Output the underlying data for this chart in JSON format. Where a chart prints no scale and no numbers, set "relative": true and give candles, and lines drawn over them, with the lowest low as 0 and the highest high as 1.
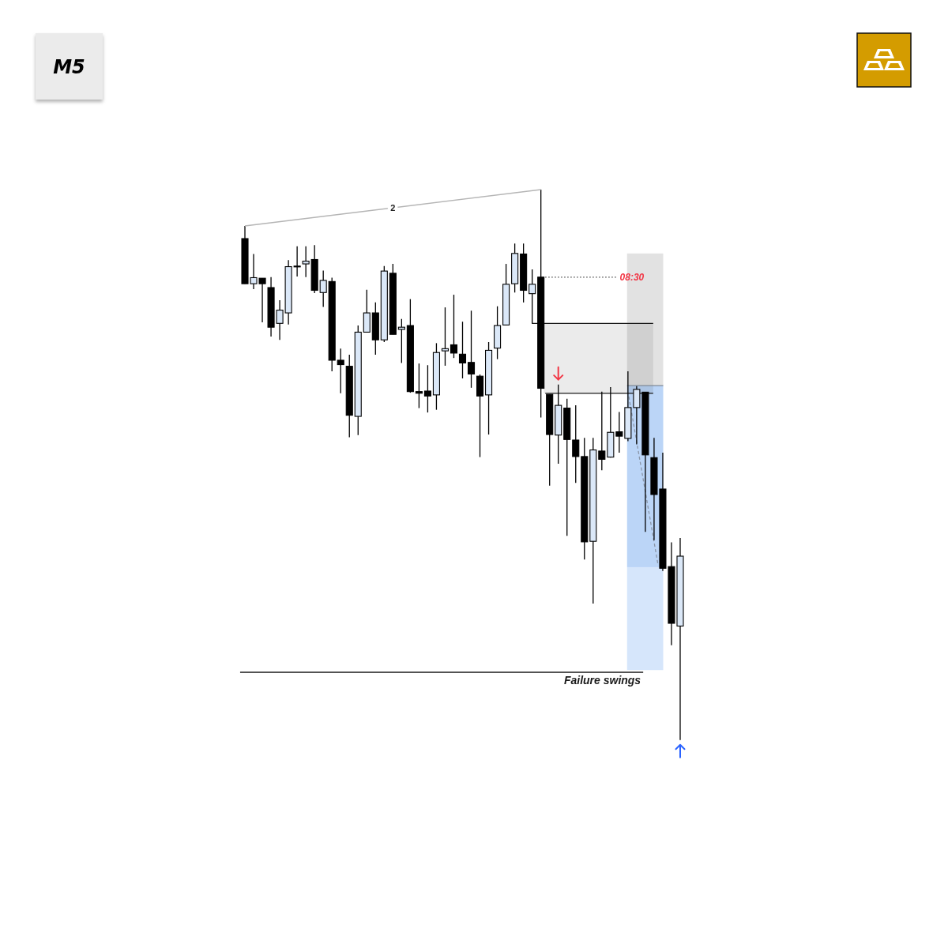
{
  "chart_data": {
    "type": "candlestick",
    "relative": true,
    "categories": [
      null,
      null,
      null,
      null,
      null,
      null,
      null,
      null,
      null,
      null,
      null,
      null,
      null,
      null,
      null,
      null,
      null,
      null,
      null,
      null,
      null,
      null,
      null,
      null,
      null,
      null,
      null,
      null,
      null,
      null,
      null,
      null,
      null,
      null,
      null,
      null,
      null,
      null,
      null,
      null,
      null,
      null,
      null,
      null,
      null,
      null,
      null,
      null,
      null,
      null,
      null
    ],
    "series": [
      {
        "ohlc": [
          [
            0.911,
            0.934,
            0.829,
            0.829
          ],
          [
            0.829,
            0.883,
            0.819,
            0.84
          ],
          [
            0.839,
            0.839,
            0.759,
            0.829
          ],
          [
            0.822,
            0.841,
            0.733,
            0.75
          ],
          [
            0.757,
            0.799,
            0.727,
            0.781
          ],
          [
            0.776,
            0.872,
            0.755,
            0.86
          ],
          [
            0.861,
            0.897,
            0.842,
            0.861
          ],
          [
            0.865,
            0.897,
            0.841,
            0.87
          ],
          [
            0.873,
            0.899,
            0.812,
            0.817
          ],
          [
            0.813,
            0.853,
            0.787,
            0.835
          ],
          [
            0.833,
            0.84,
            0.67,
            0.69
          ],
          [
            0.69,
            0.711,
            0.63,
            0.682
          ],
          [
            0.679,
            0.7,
            0.55,
            0.59
          ],
          [
            0.588,
            0.753,
            0.554,
            0.741
          ],
          [
            0.741,
            0.818,
            0.741,
            0.776
          ],
          [
            0.776,
            0.795,
            0.7,
            0.727
          ],
          [
            0.727,
            0.861,
            0.723,
            0.852
          ],
          [
            0.848,
            0.865,
            0.737,
            0.737
          ],
          [
            0.746,
            0.765,
            0.685,
            0.75
          ],
          [
            0.753,
            0.801,
            0.631,
            0.633
          ],
          [
            0.633,
            0.684,
            0.603,
            0.63
          ],
          [
            0.634,
            0.681,
            0.595,
            0.625
          ],
          [
            0.627,
            0.721,
            0.6,
            0.704
          ],
          [
            0.707,
            0.786,
            0.68,
            0.711
          ],
          [
            0.718,
            0.809,
            0.694,
            0.703
          ],
          [
            0.701,
            0.76,
            0.657,
            0.685
          ],
          [
            0.686,
            0.78,
            0.64,
            0.665
          ],
          [
            0.661,
            0.664,
            0.514,
            0.625
          ],
          [
            0.627,
            0.723,
            0.555,
            0.708
          ],
          [
            0.712,
            0.788,
            0.692,
            0.753
          ],
          [
            0.754,
            0.865,
            0.754,
            0.828
          ],
          [
            0.829,
            0.902,
            0.813,
            0.884
          ],
          [
            0.883,
            0.902,
            0.795,
            0.817
          ],
          [
            0.811,
            0.855,
            0.757,
            0.828
          ],
          [
            0.841,
            1.0,
            0.586,
            0.639
          ],
          [
            0.628,
            0.628,
            0.462,
            0.555
          ],
          [
            0.554,
            0.646,
            0.502,
            0.608
          ],
          [
            0.603,
            0.62,
            0.371,
            0.546
          ],
          [
            0.545,
            0.608,
            0.467,
            0.515
          ],
          [
            0.515,
            0.549,
            0.328,
            0.36
          ],
          [
            0.361,
            0.549,
            0.248,
            0.527
          ],
          [
            0.525,
            0.633,
            0.49,
            0.51
          ],
          [
            0.514,
            0.641,
            0.513,
            0.559
          ],
          [
            0.56,
            0.596,
            0.522,
            0.552
          ],
          [
            0.548,
            0.67,
            0.543,
            0.604
          ],
          [
            0.604,
            0.643,
            0.537,
            0.637
          ],
          [
            0.632,
            0.632,
            0.378,
            0.518
          ],
          [
            0.513,
            0.549,
            0.363,
            0.446
          ],
          [
            0.456,
            0.522,
            0.307,
            0.312
          ],
          [
            0.315,
            0.359,
            0.172,
            0.212
          ],
          [
            0.207,
            0.367,
            0.0,
            0.334
          ]
        ],
        "colors": [
          "#000000",
          "#dbe8f8",
          "#000000",
          "#000000",
          "#dbe8f8",
          "#dbe8f8",
          "#000000",
          "#dbe8f8",
          "#000000",
          "#dbe8f8",
          "#000000",
          "#000000",
          "#000000",
          "#dbe8f8",
          "#dbe8f8",
          "#000000",
          "#dbe8f8",
          "#000000",
          "#dbe8f8",
          "#000000",
          "#000000",
          "#000000",
          "#dbe8f8",
          "#dbe8f8",
          "#000000",
          "#000000",
          "#000000",
          "#000000",
          "#dbe8f8",
          "#dbe8f8",
          "#dbe8f8",
          "#dbe8f8",
          "#000000",
          "#dbe8f8",
          "#000000",
          "#000000",
          "#dbe8f8",
          "#000000",
          "#000000",
          "#000000",
          "#dbe8f8",
          "#000000",
          "#dbe8f8",
          "#000000",
          "#dbe8f8",
          "#dbe8f8",
          "#000000",
          "#000000",
          "#000000",
          "#000000",
          "#dbe8f8"
        ]
      },
      {
        "type": "line",
        "color": "#b5b5b5",
        "values": [
          0.934,
          null,
          null,
          null,
          null,
          null,
          null,
          null,
          null,
          null,
          null,
          null,
          null,
          null,
          null,
          null,
          null,
          null,
          null,
          null,
          null,
          null,
          null,
          null,
          null,
          null,
          null,
          null,
          null,
          null,
          null,
          null,
          null,
          null,
          1.0,
          null,
          null,
          null,
          null,
          null,
          null,
          null,
          null,
          null,
          null,
          null,
          null,
          null,
          null,
          null,
          null
        ]
      }
    ],
    "bands": [
      {
        "axis": "y",
        "from": 0.63,
        "to": 0.757,
        "color": "#ebebeb"
      },
      {
        "axis": "y",
        "from": 0.644,
        "to": 0.884,
        "color": "#e2e2e2"
      },
      {
        "axis": "y",
        "from": 0.314,
        "to": 0.644,
        "color": "#bbd5f7"
      },
      {
        "axis": "y",
        "from": 0.127,
        "to": 0.314,
        "color": "#d6e6fb"
      }
    ],
    "ref_lines": [
      {
        "axis": "y",
        "value": 0.757,
        "color": "#1a1a1a"
      },
      {
        "axis": "y",
        "value": 0.63,
        "color": "#1a1a1a"
      },
      {
        "axis": "y",
        "value": 0.841,
        "line_style": "dotted",
        "color": "#444444"
      },
      {
        "axis": "y",
        "value": 0.123,
        "label": "Failure swings",
        "color": "#1a1a1a"
      },
      {
        "axis": "y",
        "value": 0.644,
        "color": "#7f8a99"
      }
    ],
    "annotations": [
      "M5",
      "08:30",
      "2"
    ]
  }
}
